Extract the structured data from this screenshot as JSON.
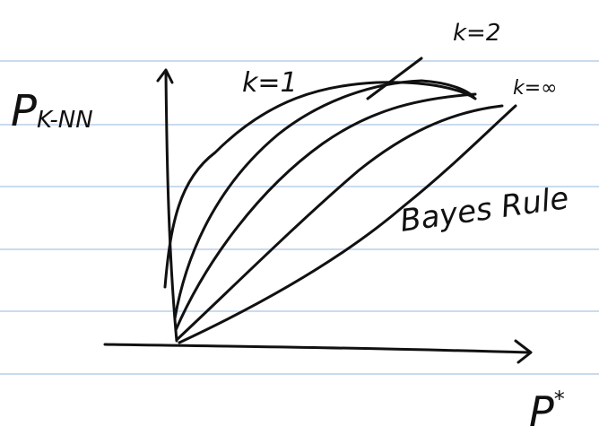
{
  "y_axis": {
    "symbol": "P",
    "subscript": "K-NN"
  },
  "x_axis": {
    "symbol": "P",
    "superscript": "*"
  },
  "curve_labels": [
    "k=1",
    "k=2",
    "k=∞"
  ],
  "annotation": "Bayes Rule"
}
